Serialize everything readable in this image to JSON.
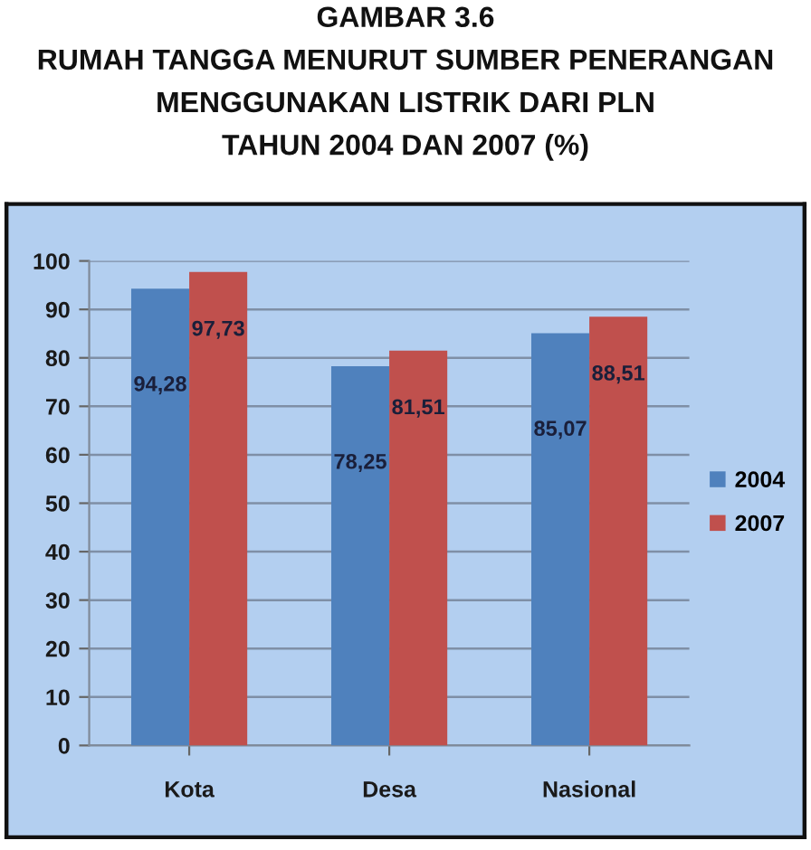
{
  "chart_data": {
    "type": "bar",
    "title": "GAMBAR 3.6\nRUMAH TANGGA MENURUT SUMBER PENERANGAN\nMENGGUNAKAN LISTRIK DARI PLN\nTAHUN 2004 DAN 2007 (%)",
    "categories": [
      "Kota",
      "Desa",
      "Nasional"
    ],
    "series": [
      {
        "name": "2004",
        "color": "#4f81bd",
        "values": [
          94.28,
          78.25,
          85.07
        ],
        "value_labels": [
          "94,28",
          "78,25",
          "85,07"
        ]
      },
      {
        "name": "2007",
        "color": "#c0504d",
        "values": [
          97.73,
          81.51,
          88.51
        ],
        "value_labels": [
          "97,73",
          "81,51",
          "88,51"
        ]
      }
    ],
    "ylim": [
      0,
      100
    ],
    "yticks": [
      0,
      10,
      20,
      30,
      40,
      50,
      60,
      70,
      80,
      90,
      100
    ],
    "grid": "y",
    "legend": "right"
  }
}
